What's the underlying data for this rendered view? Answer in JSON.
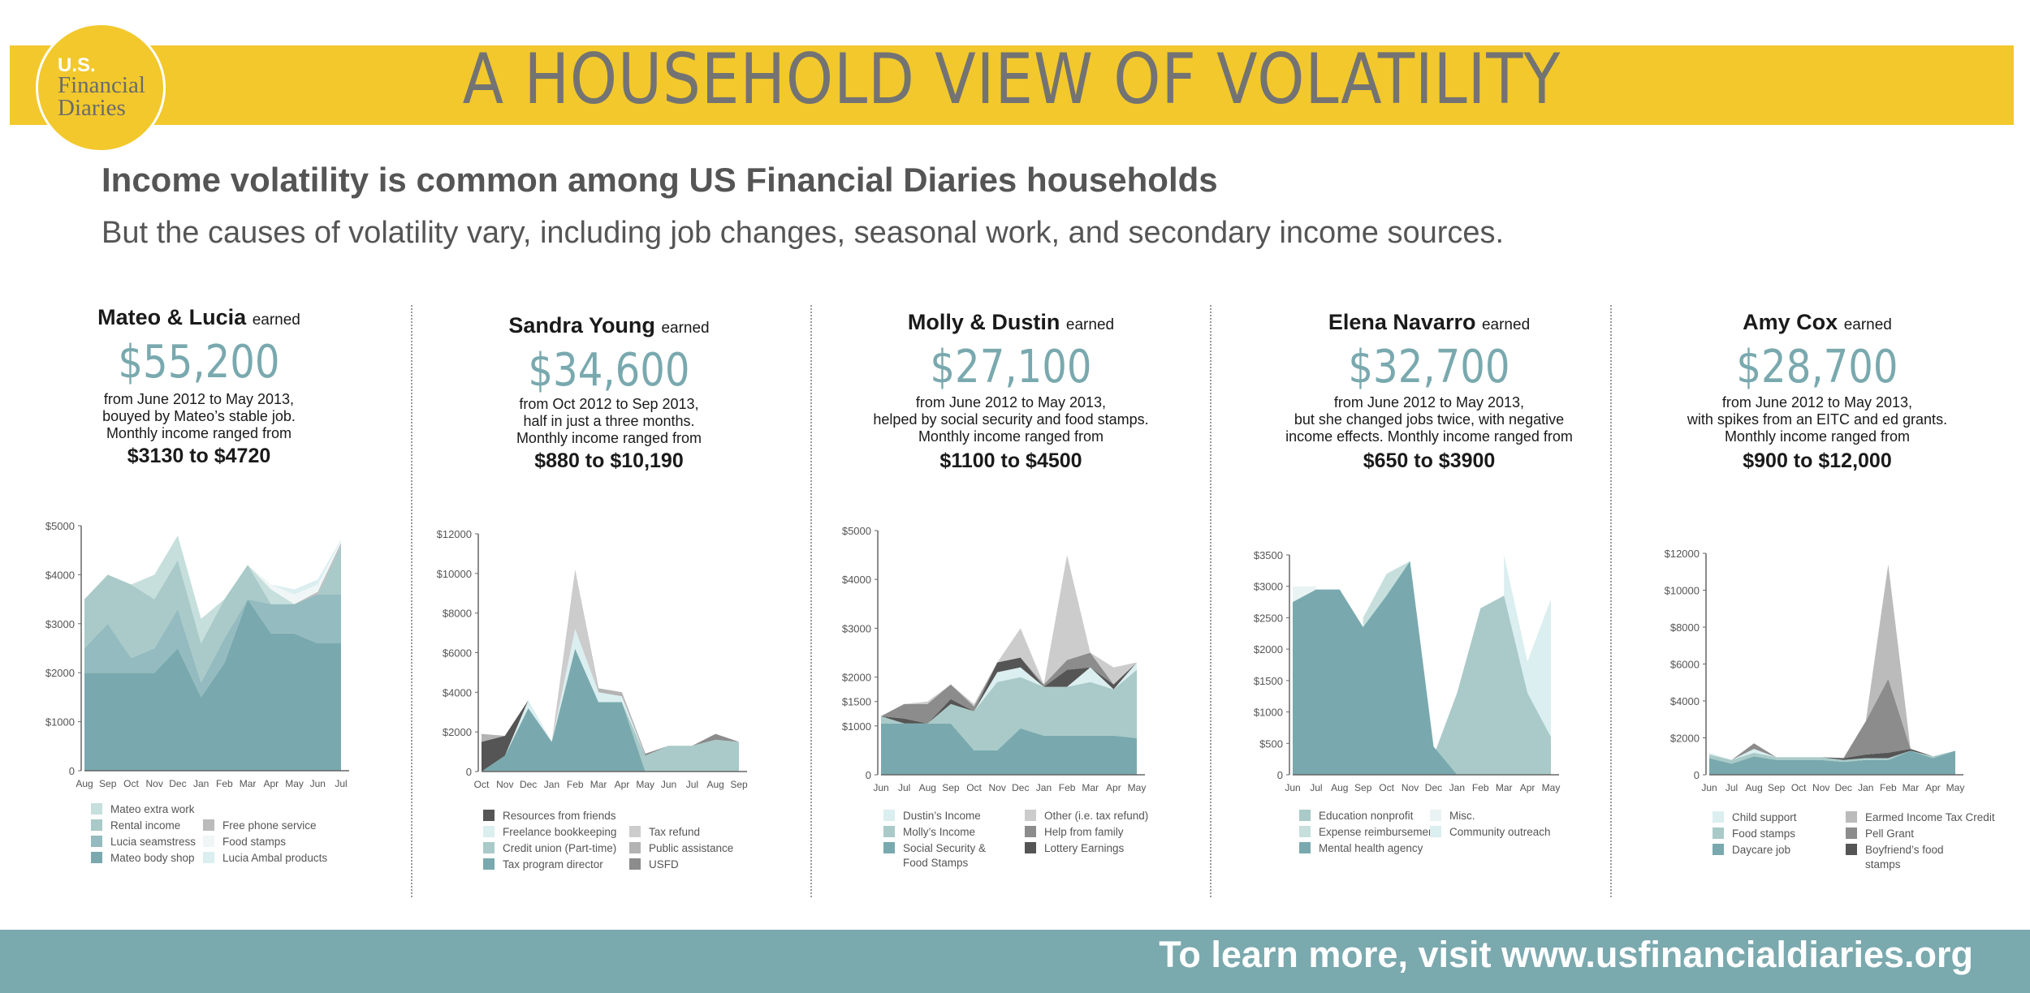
{
  "header": {
    "title": "A HOUSEHOLD VIEW OF VOLATILITY",
    "logo_line1": "U.S.",
    "logo_line2": "Financial",
    "logo_line3": "Diaries"
  },
  "headline": "Income volatility is common among US Financial Diaries households",
  "subheadline": "But the causes of volatility vary, including job changes, seasonal work, and secondary income sources.",
  "footer": {
    "cta": "To learn more, visit www.usfinancialdiaries.org"
  },
  "colors": {
    "banner": "#f2c82c",
    "teal": "#79a9ae",
    "footer": "#7aa9ae"
  },
  "panels": [
    {
      "name": "Mateo & Lucia",
      "earned": "earned",
      "amount": "$55,200",
      "desc1": "from June 2012 to May 2013,",
      "desc2": "bouyed by Mateo’s stable job.",
      "desc3": "Monthly income ranged from",
      "range": "$3130 to $4720"
    },
    {
      "name": "Sandra Young",
      "earned": "earned",
      "amount": "$34,600",
      "desc1": "from Oct 2012 to Sep 2013,",
      "desc2": "half in just a three months.",
      "desc3": "Monthly income ranged from",
      "range": "$880 to $10,190"
    },
    {
      "name": "Molly & Dustin",
      "earned": "earned",
      "amount": "$27,100",
      "desc1": "from June 2012 to May 2013,",
      "desc2": "helped by social security and food stamps.",
      "desc3": "Monthly income ranged from",
      "range": "$1100 to $4500"
    },
    {
      "name": "Elena Navarro",
      "earned": "earned",
      "amount": "$32,700",
      "desc1": "from June 2012 to May 2013,",
      "desc2": "but she changed jobs twice, with negative",
      "desc3": "income effects. Monthly income ranged from",
      "range": "$650 to $3900"
    },
    {
      "name": "Amy Cox",
      "earned": "earned",
      "amount": "$28,700",
      "desc1": "from June 2012 to May 2013,",
      "desc2": "with spikes from an EITC and ed grants.",
      "desc3": "Monthly income ranged from",
      "range": "$900 to $12,000"
    }
  ],
  "chart_data": [
    {
      "type": "area",
      "stacked": true,
      "x": [
        "Aug",
        "Sep",
        "Oct",
        "Nov",
        "Dec",
        "Jan",
        "Feb",
        "Mar",
        "Apr",
        "May",
        "Jun",
        "Jul"
      ],
      "ylim": [
        0,
        5000
      ],
      "yticks": [
        0,
        1000,
        2000,
        3000,
        4000,
        5000
      ],
      "ytick_labels": [
        "0",
        "$1000",
        "$2000",
        "$3000",
        "$4000",
        "$5000"
      ],
      "series": [
        {
          "name": "Mateo body shop",
          "color": "#79a9ae",
          "values": [
            2000,
            2000,
            2000,
            2000,
            2500,
            1500,
            2200,
            3500,
            2800,
            2800,
            2600,
            2600
          ]
        },
        {
          "name": "Lucia seamstress",
          "color": "#94bbbf",
          "values": [
            500,
            1000,
            300,
            500,
            800,
            300,
            500,
            0,
            600,
            600,
            1000,
            1000
          ]
        },
        {
          "name": "Rental income",
          "color": "#a9cac8",
          "values": [
            1000,
            1000,
            1500,
            1000,
            1000,
            800,
            800,
            700,
            0,
            0,
            0,
            1000
          ]
        },
        {
          "name": "Mateo extra work",
          "color": "#c6dfdd",
          "values": [
            0,
            0,
            0,
            500,
            500,
            500,
            0,
            0,
            300,
            0,
            0,
            0
          ]
        },
        {
          "name": "Free phone service",
          "color": "#bbbbbb",
          "values": [
            0,
            0,
            0,
            0,
            0,
            0,
            0,
            0,
            0,
            0,
            50,
            50
          ]
        },
        {
          "name": "Food stamps",
          "color": "#f0f6f6",
          "values": [
            0,
            0,
            0,
            0,
            0,
            0,
            0,
            0,
            100,
            200,
            150,
            50
          ]
        },
        {
          "name": "Lucia Ambal products",
          "color": "#dbeef0",
          "values": [
            0,
            0,
            0,
            0,
            0,
            0,
            0,
            0,
            0,
            100,
            100,
            20
          ]
        }
      ]
    },
    {
      "type": "area",
      "stacked": true,
      "x": [
        "Oct",
        "Nov",
        "Dec",
        "Jan",
        "Feb",
        "Mar",
        "Apr",
        "May",
        "Jun",
        "Jul",
        "Aug",
        "Sep"
      ],
      "ylim": [
        0,
        12000
      ],
      "yticks": [
        0,
        2000,
        4000,
        6000,
        8000,
        10000,
        12000
      ],
      "ytick_labels": [
        "0",
        "$2000",
        "$4000",
        "$6000",
        "$8000",
        "$10000",
        "$12000"
      ],
      "series": [
        {
          "name": "Tax program director",
          "color": "#79a9ae",
          "values": [
            0,
            800,
            3200,
            1500,
            6200,
            3500,
            3500,
            0,
            0,
            0,
            0,
            0
          ]
        },
        {
          "name": "Credit union (Part-time)",
          "color": "#a9cac8",
          "values": [
            0,
            0,
            0,
            0,
            0,
            0,
            0,
            800,
            1300,
            1300,
            1600,
            1500
          ]
        },
        {
          "name": "Freelance bookkeeping",
          "color": "#dbeef0",
          "values": [
            0,
            0,
            400,
            0,
            1000,
            500,
            300,
            0,
            0,
            0,
            0,
            0
          ]
        },
        {
          "name": "Resources from friends",
          "color": "#555555",
          "values": [
            1500,
            1000,
            0,
            0,
            0,
            0,
            0,
            0,
            0,
            0,
            0,
            0
          ]
        },
        {
          "name": "Tax refund",
          "color": "#cccccc",
          "values": [
            0,
            0,
            0,
            0,
            3000,
            0,
            0,
            0,
            0,
            0,
            0,
            0
          ]
        },
        {
          "name": "Public assistance",
          "color": "#b3b3b3",
          "values": [
            400,
            0,
            0,
            0,
            0,
            200,
            200,
            0,
            0,
            0,
            0,
            0
          ]
        },
        {
          "name": "USFD",
          "color": "#8c8c8c",
          "values": [
            0,
            0,
            0,
            0,
            0,
            0,
            0,
            100,
            0,
            0,
            300,
            0
          ]
        }
      ]
    },
    {
      "type": "area",
      "stacked": true,
      "x": [
        "Jun",
        "Jul",
        "Aug",
        "Sep",
        "Oct",
        "Nov",
        "Dec",
        "Jan",
        "Feb",
        "Mar",
        "Apr",
        "May"
      ],
      "ylim": [
        0,
        5000
      ],
      "yticks": [
        0,
        1000,
        1500,
        2000,
        3000,
        4000,
        5000
      ],
      "ytick_labels": [
        "0",
        "$1000",
        "$1500",
        "$2000",
        "$3000",
        "$4000",
        "$5000"
      ],
      "series": [
        {
          "name": "Social Security & Food Stamps",
          "color": "#79a9ae",
          "values": [
            1050,
            1050,
            1050,
            1050,
            500,
            500,
            950,
            800,
            800,
            800,
            800,
            750
          ]
        },
        {
          "name": "Molly’s Income",
          "color": "#a9cac8",
          "values": [
            150,
            0,
            0,
            400,
            800,
            1400,
            1050,
            1000,
            1000,
            1100,
            950,
            1400
          ]
        },
        {
          "name": "Dustin’s Income",
          "color": "#dbeef0",
          "values": [
            0,
            0,
            0,
            0,
            0,
            200,
            200,
            0,
            0,
            300,
            0,
            150
          ]
        },
        {
          "name": "Lottery Earnings",
          "color": "#555555",
          "values": [
            0,
            100,
            0,
            100,
            0,
            200,
            200,
            0,
            350,
            0,
            100,
            0
          ]
        },
        {
          "name": "Help from family",
          "color": "#8c8c8c",
          "values": [
            0,
            300,
            400,
            300,
            100,
            0,
            0,
            50,
            200,
            300,
            0,
            0
          ]
        },
        {
          "name": "Other (i.e. tax refund)",
          "color": "#cccccc",
          "values": [
            0,
            0,
            50,
            0,
            50,
            0,
            600,
            0,
            2150,
            0,
            350,
            0
          ]
        }
      ]
    },
    {
      "type": "area",
      "stacked": false,
      "x": [
        "Jun",
        "Jul",
        "Aug",
        "Sep",
        "Oct",
        "Nov",
        "Dec",
        "Jan",
        "Feb",
        "Mar",
        "Apr",
        "May"
      ],
      "ylim": [
        0,
        3500
      ],
      "yticks": [
        0,
        500,
        1000,
        1500,
        2000,
        2500,
        3000,
        3500
      ],
      "ytick_labels": [
        "0",
        "$500",
        "$1000",
        "$1500",
        "$2000",
        "$2500",
        "$3000",
        "$3500"
      ],
      "series": [
        {
          "name": "Community outreach",
          "color": "#dbeef0",
          "values": [
            null,
            null,
            null,
            null,
            null,
            null,
            null,
            null,
            null,
            3500,
            1800,
            2800
          ]
        },
        {
          "name": "Misc.",
          "color": "#eaf3f3",
          "values": [
            3000,
            3000,
            null,
            null,
            null,
            null,
            null,
            null,
            null,
            null,
            null,
            null
          ]
        },
        {
          "name": "Expense reimbursement",
          "color": "#c6dfdd",
          "values": [
            null,
            null,
            null,
            2500,
            3200,
            3400,
            null,
            null,
            null,
            null,
            null,
            null
          ]
        },
        {
          "name": "Education nonprofit",
          "color": "#a9cac8",
          "values": [
            null,
            null,
            null,
            null,
            null,
            null,
            300,
            1300,
            2650,
            2850,
            1300,
            600
          ]
        },
        {
          "name": "Mental health agency",
          "color": "#79a9ae",
          "values": [
            2750,
            2950,
            2950,
            2350,
            2850,
            3400,
            450,
            0,
            null,
            null,
            null,
            null
          ]
        }
      ]
    },
    {
      "type": "area",
      "stacked": true,
      "x": [
        "Jun",
        "Jul",
        "Aug",
        "Sep",
        "Oct",
        "Nov",
        "Dec",
        "Jan",
        "Feb",
        "Mar",
        "Apr",
        "May"
      ],
      "ylim": [
        0,
        12000
      ],
      "yticks": [
        0,
        2000,
        4000,
        6000,
        8000,
        10000,
        12000
      ],
      "ytick_labels": [
        "0",
        "$2000",
        "$4000",
        "$6000",
        "$8000",
        "$10000",
        "$12000"
      ],
      "series": [
        {
          "name": "Daycare job",
          "color": "#79a9ae",
          "values": [
            900,
            600,
            1000,
            800,
            800,
            800,
            700,
            800,
            800,
            1300,
            900,
            1300
          ]
        },
        {
          "name": "Food stamps",
          "color": "#a9cac8",
          "values": [
            200,
            200,
            200,
            150,
            150,
            150,
            100,
            100,
            100,
            0,
            100,
            0
          ]
        },
        {
          "name": "Child support",
          "color": "#dbeef0",
          "values": [
            100,
            0,
            200,
            0,
            0,
            0,
            0,
            0,
            0,
            0,
            0,
            0
          ]
        },
        {
          "name": "Boyfriend’s food stamps",
          "color": "#555555",
          "values": [
            0,
            0,
            0,
            0,
            0,
            0,
            100,
            200,
            300,
            100,
            0,
            0
          ]
        },
        {
          "name": "Pell Grant",
          "color": "#8c8c8c",
          "values": [
            0,
            0,
            300,
            0,
            0,
            0,
            0,
            1800,
            4000,
            0,
            0,
            0
          ]
        },
        {
          "name": "Earmed Income Tax Credit",
          "color": "#bbbbbb",
          "values": [
            0,
            0,
            0,
            0,
            0,
            0,
            0,
            0,
            6200,
            0,
            0,
            0
          ]
        }
      ]
    }
  ]
}
